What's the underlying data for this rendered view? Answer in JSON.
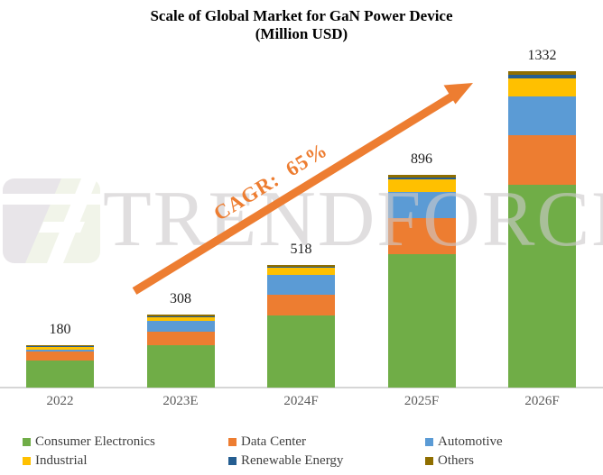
{
  "title": {
    "line1": "Scale of Global Market for GaN Power Device",
    "line2": "(Million USD)"
  },
  "watermark": {
    "text": "TRENDFORCE",
    "logo": "trendforce-logo"
  },
  "annotation": {
    "label": "CAGR:  65%",
    "color": "#ED7D31"
  },
  "chart_data": {
    "type": "bar",
    "stacked": true,
    "title": "Scale of Global Market for GaN Power Device (Million USD)",
    "categories": [
      "2022",
      "2023E",
      "2024F",
      "2025F",
      "2026F"
    ],
    "totals": [
      180,
      308,
      518,
      896,
      1332
    ],
    "series": [
      {
        "name": "Consumer Electronics",
        "color": "#70AD47",
        "values": [
          115,
          179,
          303,
          562,
          852
        ]
      },
      {
        "name": "Data Center",
        "color": "#ED7D31",
        "values": [
          35,
          57,
          87,
          152,
          209
        ]
      },
      {
        "name": "Automotive",
        "color": "#5B9BD5",
        "values": [
          11,
          46,
          83,
          110,
          166
        ]
      },
      {
        "name": "Industrial",
        "color": "#FFC000",
        "values": [
          10,
          15,
          30,
          53,
          76
        ]
      },
      {
        "name": "Renewable Energy",
        "color": "#255E91",
        "values": [
          3,
          3,
          7,
          8,
          15
        ]
      },
      {
        "name": "Others",
        "color": "#8F6E00",
        "values": [
          6,
          8,
          8,
          11,
          14
        ]
      }
    ],
    "annotation": "CAGR: 65%",
    "xlabel": "",
    "ylabel": "",
    "ylim": [
      0,
      1400
    ],
    "grid": false,
    "legend_position": "bottom"
  }
}
